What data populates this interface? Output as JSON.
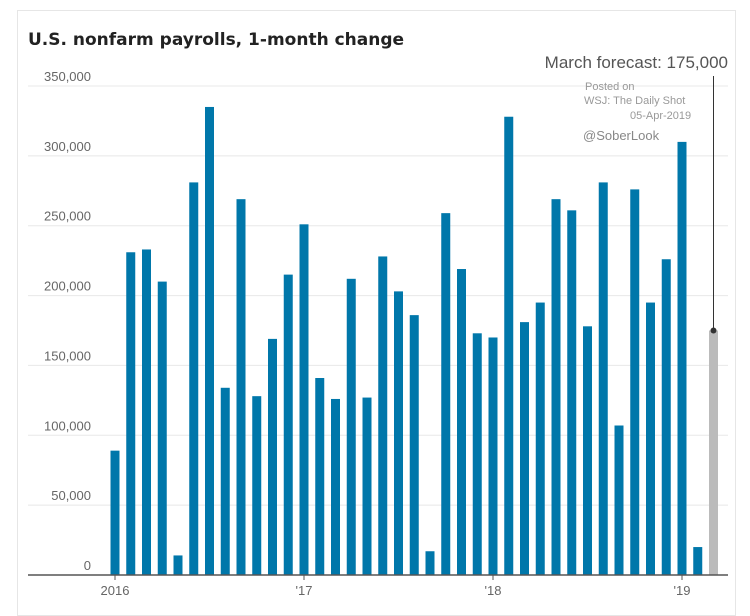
{
  "chart_data": {
    "type": "bar",
    "title": "U.S. nonfarm payrolls, 1-month change",
    "xlabel": "",
    "ylabel": "",
    "ylim": [
      0,
      350000
    ],
    "grid": true,
    "y_ticks": [
      "0",
      "50,000",
      "100,000",
      "150,000",
      "200,000",
      "250,000",
      "300,000",
      "350,000"
    ],
    "y_tick_values": [
      0,
      50000,
      100000,
      150000,
      200000,
      250000,
      300000,
      350000
    ],
    "x_ticks": [
      {
        "label": "2016",
        "index": 0
      },
      {
        "label": "'17",
        "index": 12
      },
      {
        "label": "'18",
        "index": 24
      },
      {
        "label": "'19",
        "index": 36
      }
    ],
    "bar_color": "#0077aa",
    "values": [
      89000,
      231000,
      233000,
      210000,
      14000,
      281000,
      335000,
      134000,
      269000,
      128000,
      169000,
      215000,
      251000,
      141000,
      126000,
      212000,
      127000,
      228000,
      203000,
      186000,
      17000,
      259000,
      219000,
      173000,
      170000,
      328000,
      181000,
      195000,
      269000,
      261000,
      178000,
      281000,
      107000,
      276000,
      195000,
      226000,
      310000,
      20000
    ],
    "forecast": {
      "label": "March forecast: 175,000",
      "value": 175000,
      "color": "#bbbbbb"
    }
  },
  "watermark": {
    "line1": "Posted on",
    "line2": "WSJ: The Daily Shot",
    "date": "05-Apr-2019",
    "handle": "@SoberLook"
  }
}
